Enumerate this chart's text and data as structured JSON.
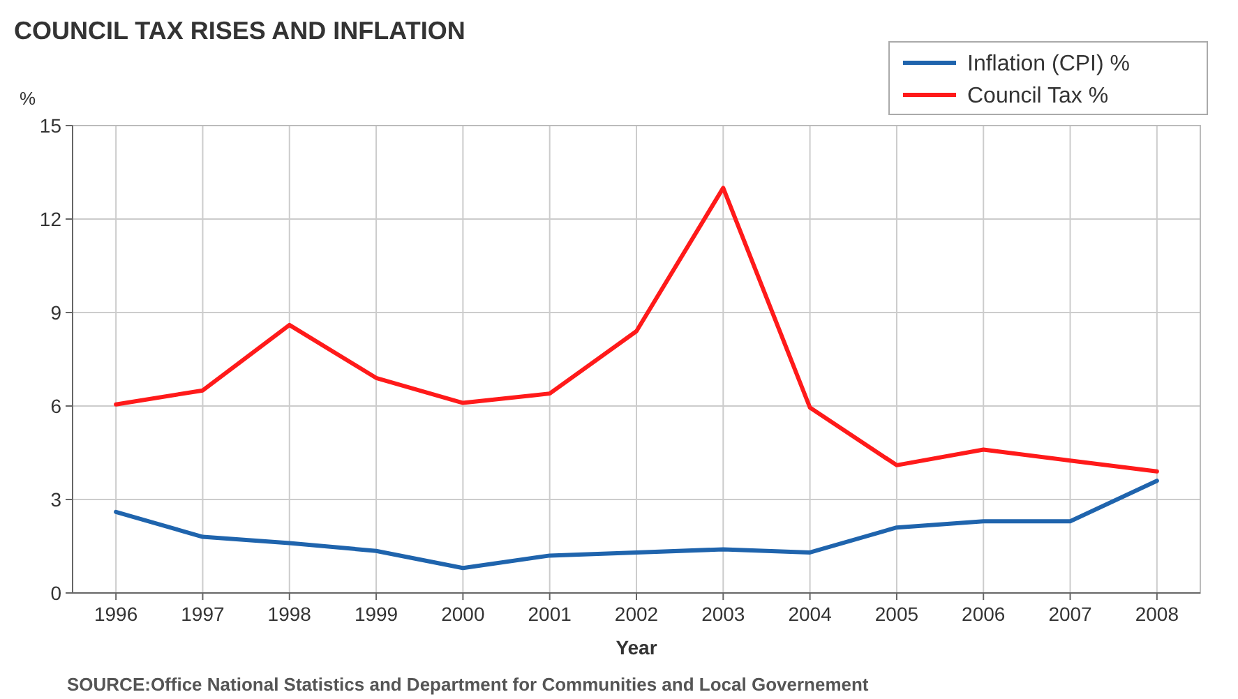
{
  "chart_data": {
    "type": "line",
    "title": "COUNCIL TAX RISES AND INFLATION",
    "ylabel": "%",
    "xlabel": "Year",
    "categories": [
      "1996",
      "1997",
      "1998",
      "1999",
      "2000",
      "2001",
      "2002",
      "2003",
      "2004",
      "2005",
      "2006",
      "2007",
      "2008"
    ],
    "series": [
      {
        "name": "Inflation (CPI) %",
        "color": "#1f64ad",
        "values": [
          2.6,
          1.8,
          1.6,
          1.35,
          0.8,
          1.2,
          1.3,
          1.4,
          1.3,
          2.1,
          2.3,
          2.3,
          3.6
        ]
      },
      {
        "name": "Council Tax %",
        "color": "#ff1a1a",
        "values": [
          6.05,
          6.5,
          8.6,
          6.9,
          6.1,
          6.4,
          8.4,
          13.0,
          5.95,
          4.1,
          4.6,
          4.25,
          3.9
        ]
      }
    ],
    "ylim": [
      0,
      15
    ],
    "yticks": [
      0,
      3,
      6,
      9,
      12,
      15
    ],
    "grid": true,
    "legend": "top right",
    "marker": "none",
    "line_style": "solid",
    "annotations": [
      "SOURCE:Office National Statistics and Department for Communities and Local Governement"
    ]
  }
}
